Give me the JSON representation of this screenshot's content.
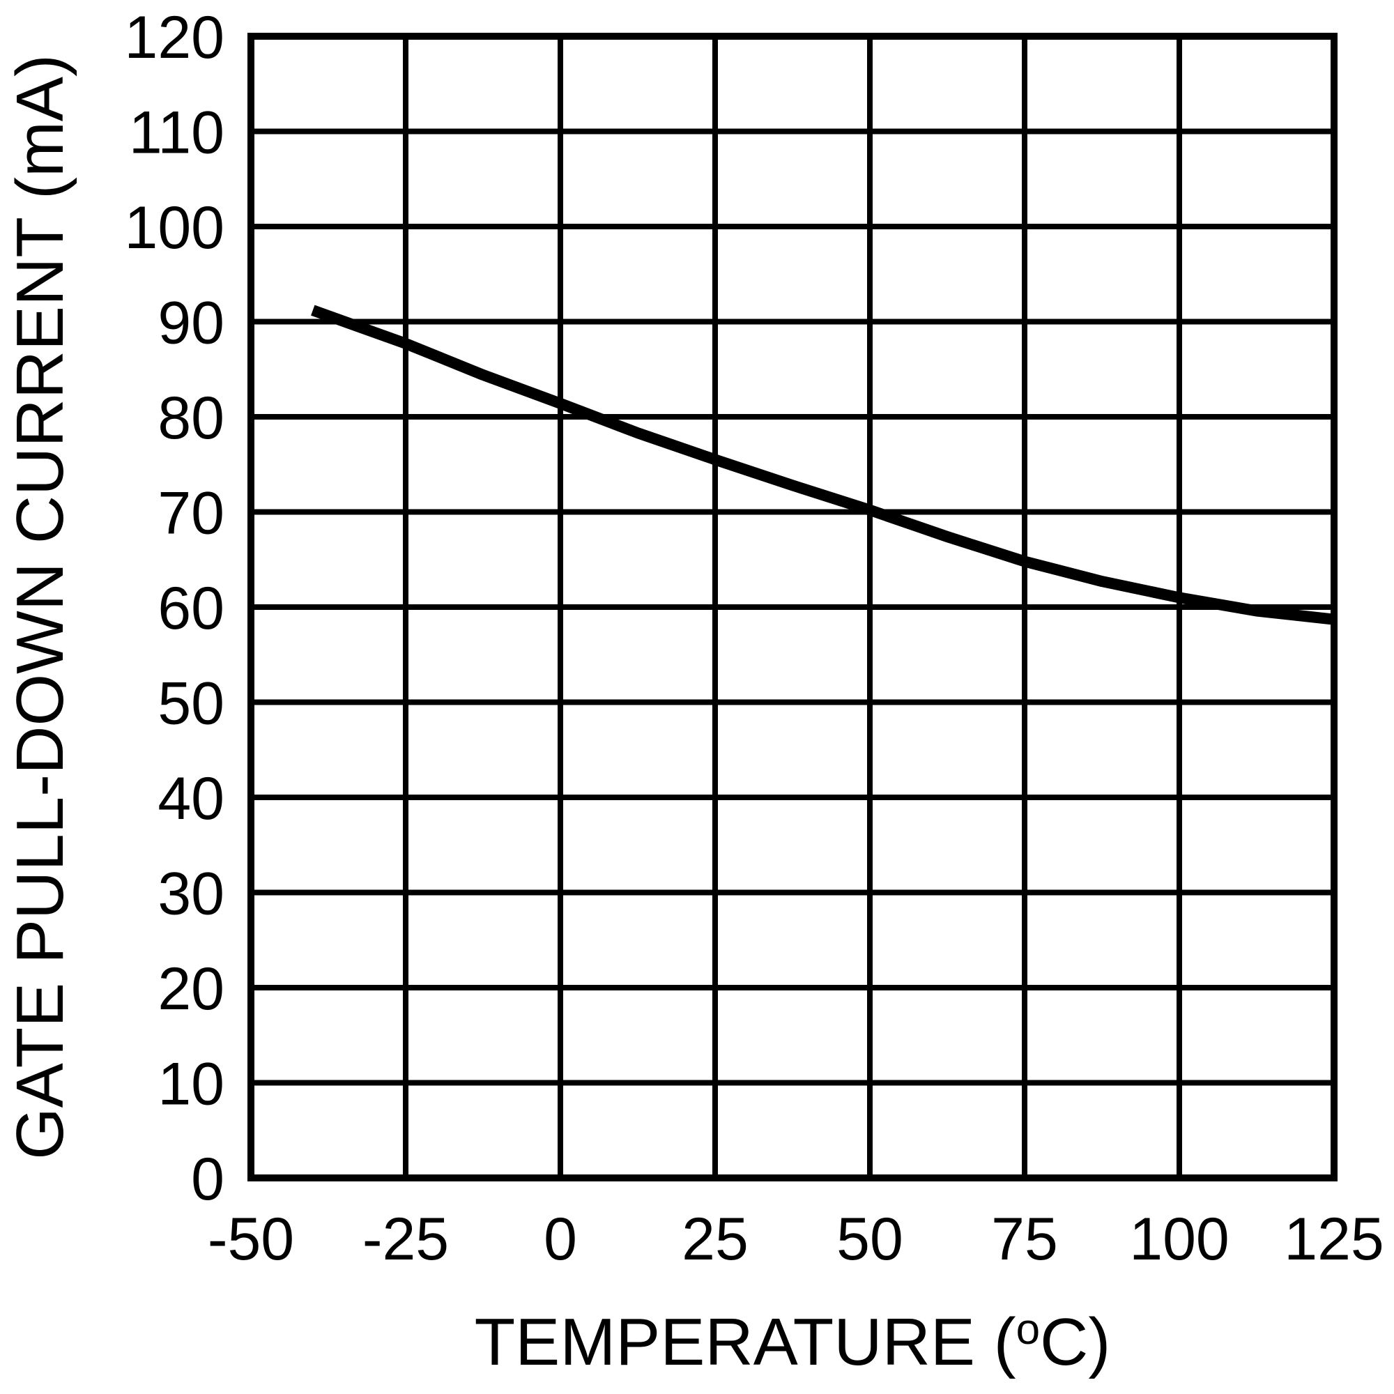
{
  "page": {
    "background_color": "#ffffff",
    "foreground_color": "#000000"
  },
  "chart_data": {
    "type": "line",
    "title": "",
    "xlabel": "TEMPERATURE (°C)",
    "ylabel": "GATE PULL-DOWN CURRENT (mA)",
    "xlim": [
      -50,
      125
    ],
    "ylim": [
      0,
      120
    ],
    "x_ticks": [
      -50,
      -25,
      0,
      25,
      50,
      75,
      100,
      125
    ],
    "y_ticks": [
      0,
      10,
      20,
      30,
      40,
      50,
      60,
      70,
      80,
      90,
      100,
      110,
      120
    ],
    "grid": true,
    "legend_position": "none",
    "colors": {
      "line": "#000000",
      "grid": "#000000",
      "text": "#000000",
      "background": "#ffffff"
    },
    "series": [
      {
        "name": "gate-pull-down-current",
        "x": [
          -40,
          -25,
          -12.5,
          0,
          12.5,
          25,
          37.5,
          50,
          62.5,
          75,
          87.5,
          100,
          112.5,
          125
        ],
        "y": [
          91.2,
          87.7,
          84.4,
          81.4,
          78.3,
          75.5,
          72.8,
          70.2,
          67.4,
          64.8,
          62.7,
          61.0,
          59.6,
          58.7
        ]
      }
    ]
  }
}
